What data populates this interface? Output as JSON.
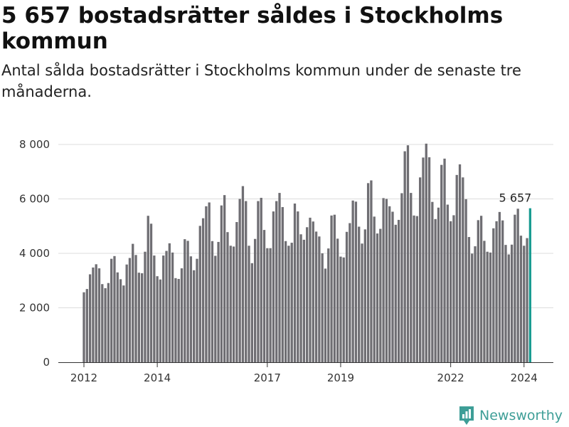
{
  "title": "5 657 bostadsrätter såldes i Stockholms kommun",
  "subtitle": "Antal sålda bostadsrätter i Stockholms kommun under de senaste tre månaderna.",
  "brand": "Newsworthy",
  "colors": {
    "bar": "#6f6e73",
    "highlight": "#1a9c92",
    "grid": "#dddddd",
    "brand": "#3e9e97"
  },
  "chart_data": {
    "type": "bar",
    "title": "5 657 bostadsrätter såldes i Stockholms kommun",
    "subtitle": "Antal sålda bostadsrätter i Stockholms kommun under de senaste tre månaderna.",
    "xlabel": "",
    "ylabel": "",
    "ylim": [
      0,
      8000
    ],
    "yticks": [
      0,
      2000,
      4000,
      6000,
      8000
    ],
    "ytick_labels": [
      "0",
      "2 000",
      "4 000",
      "6 000",
      "8 000"
    ],
    "xticks": [
      "2012",
      "2014",
      "2017",
      "2019",
      "2022",
      "2024"
    ],
    "grid": true,
    "last_label": "5 657",
    "highlight": "last",
    "values": [
      2570,
      2690,
      3230,
      3480,
      3600,
      3450,
      2870,
      2720,
      2910,
      3800,
      3900,
      3300,
      3050,
      2820,
      3590,
      3830,
      4350,
      3940,
      3290,
      3270,
      4060,
      5380,
      5090,
      3920,
      3160,
      3040,
      3920,
      4090,
      4370,
      4030,
      3090,
      3060,
      3450,
      4520,
      4460,
      3890,
      3380,
      3800,
      5010,
      5290,
      5730,
      5870,
      4450,
      3910,
      4420,
      5760,
      6140,
      4780,
      4280,
      4250,
      5150,
      6000,
      6470,
      5920,
      4280,
      3640,
      4530,
      5920,
      6040,
      4860,
      4190,
      4190,
      5540,
      5920,
      6220,
      5700,
      4450,
      4280,
      4390,
      5830,
      5540,
      4700,
      4500,
      4960,
      5310,
      5170,
      4800,
      4620,
      4000,
      3440,
      4180,
      5390,
      5420,
      4540,
      3880,
      3850,
      4790,
      5110,
      5940,
      5900,
      4980,
      4360,
      4880,
      6580,
      6680,
      5350,
      4730,
      4900,
      6030,
      6000,
      5730,
      5530,
      5050,
      5230,
      6210,
      7750,
      7970,
      6220,
      5390,
      5370,
      6790,
      7520,
      8030,
      7530,
      5890,
      5260,
      5680,
      7250,
      7480,
      5790,
      5180,
      5400,
      6880,
      7270,
      6790,
      5990,
      4600,
      3990,
      4260,
      5220,
      5380,
      4460,
      4060,
      4030,
      4920,
      5180,
      5520,
      5210,
      4310,
      3960,
      4320,
      5420,
      5640,
      4650,
      4280,
      4560,
      5657
    ]
  }
}
